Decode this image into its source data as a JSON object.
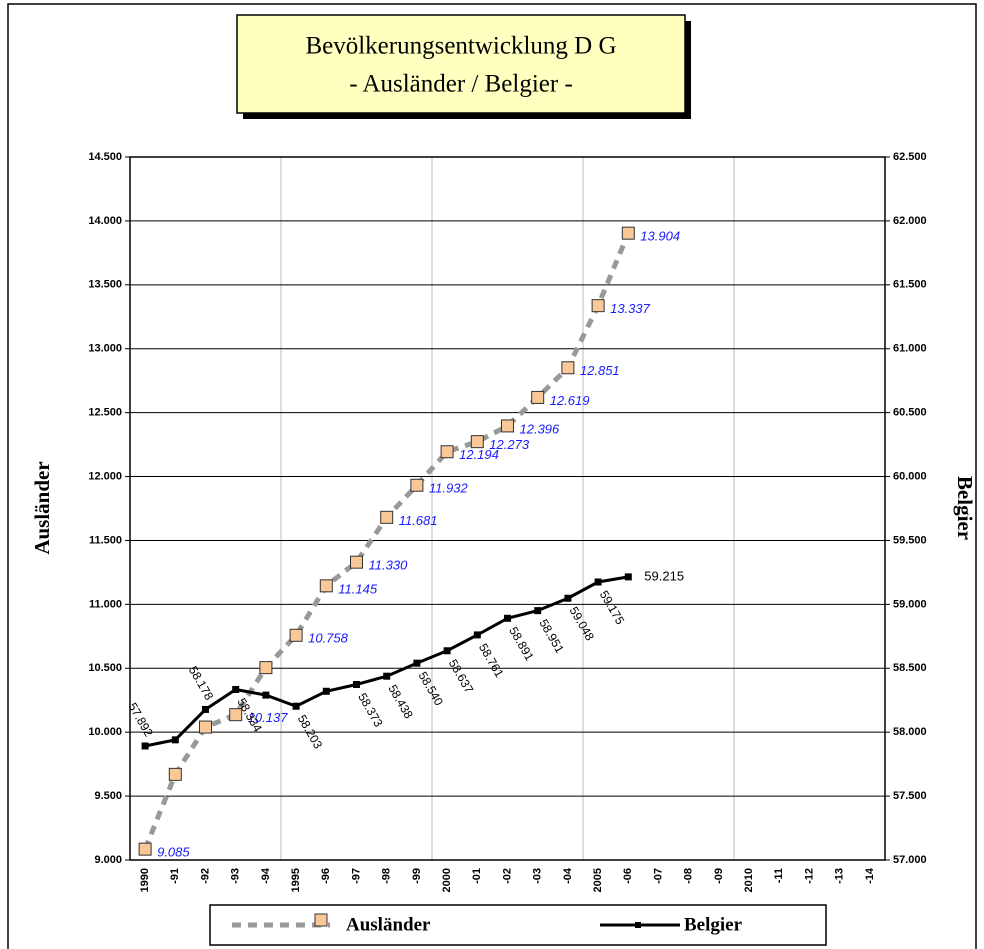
{
  "chart_data": {
    "type": "line",
    "title": "Bevölkerungsentwicklung  D G",
    "subtitle": "- Ausländer / Belgier -",
    "y_label": "Ausländer",
    "y2_label": "Belgier",
    "categories": [
      "1990",
      "-91",
      "-92",
      "-93",
      "-94",
      "1995",
      "-96",
      "-97",
      "-98",
      "-99",
      "2000",
      "-01",
      "-02",
      "-03",
      "-04",
      "2005",
      "-06",
      "-07",
      "-08",
      "-09",
      "2010",
      "-11",
      "-12",
      "-13",
      "-14"
    ],
    "x_grid_every": 5,
    "ylim": [
      9000,
      14500
    ],
    "yticks": [
      {
        "value": 9000,
        "label": "9.000"
      },
      {
        "value": 9500,
        "label": "9.500"
      },
      {
        "value": 10000,
        "label": "10.000"
      },
      {
        "value": 10500,
        "label": "10.500"
      },
      {
        "value": 11000,
        "label": "11.000"
      },
      {
        "value": 11500,
        "label": "11.500"
      },
      {
        "value": 12000,
        "label": "12.000"
      },
      {
        "value": 12500,
        "label": "12.500"
      },
      {
        "value": 13000,
        "label": "13.000"
      },
      {
        "value": 13500,
        "label": "13.500"
      },
      {
        "value": 14000,
        "label": "14.000"
      },
      {
        "value": 14500,
        "label": "14.500"
      }
    ],
    "y2lim": [
      57000,
      62500
    ],
    "y2ticks": [
      {
        "value": 57000,
        "label": "57.000"
      },
      {
        "value": 57500,
        "label": "57.500"
      },
      {
        "value": 58000,
        "label": "58.000"
      },
      {
        "value": 58500,
        "label": "58.500"
      },
      {
        "value": 59000,
        "label": "59.000"
      },
      {
        "value": 59500,
        "label": "59.500"
      },
      {
        "value": 60000,
        "label": "60.000"
      },
      {
        "value": 60500,
        "label": "60.500"
      },
      {
        "value": 61000,
        "label": "61.000"
      },
      {
        "value": 61500,
        "label": "61.500"
      },
      {
        "value": 62000,
        "label": "62.000"
      },
      {
        "value": 62500,
        "label": "62.500"
      }
    ],
    "grid": true,
    "series": [
      {
        "name": "Ausländer",
        "color": "#999999",
        "marker_color": "#f9c896",
        "label_color": "#1a1aff",
        "values": [
          9085,
          9670,
          10040,
          10137,
          10505,
          10758,
          11145,
          11330,
          11681,
          11932,
          12194,
          12273,
          12396,
          12619,
          12851,
          13337,
          13904,
          null,
          null,
          null,
          null,
          null,
          null,
          null,
          null
        ],
        "value_labels": [
          "9.085",
          null,
          null,
          "10.137",
          null,
          "10.758",
          "11.145",
          "11.330",
          "11.681",
          "11.932",
          "12.194",
          "12.273",
          "12.396",
          "12.619",
          "12.851",
          "13.337",
          "13.904",
          null,
          null,
          null,
          null,
          null,
          null,
          null,
          null
        ]
      },
      {
        "name": "Belgier",
        "color": "#000000",
        "axis": "y2",
        "label_color": "#000000",
        "values": [
          57892,
          57940,
          58178,
          58334,
          58290,
          58203,
          58320,
          58373,
          58438,
          58540,
          58637,
          58761,
          58891,
          58951,
          59048,
          59175,
          59215,
          null,
          null,
          null,
          null,
          null,
          null,
          null,
          null
        ],
        "value_labels": [
          "57.892",
          null,
          "58.178",
          "58.334",
          null,
          "58.203",
          null,
          "58.373",
          "58.438",
          "58.540",
          "58.637",
          "58.761",
          "58.891",
          "58.951",
          "59.048",
          "59.175",
          "59.215",
          null,
          null,
          null,
          null,
          null,
          null,
          null,
          null
        ]
      }
    ]
  }
}
